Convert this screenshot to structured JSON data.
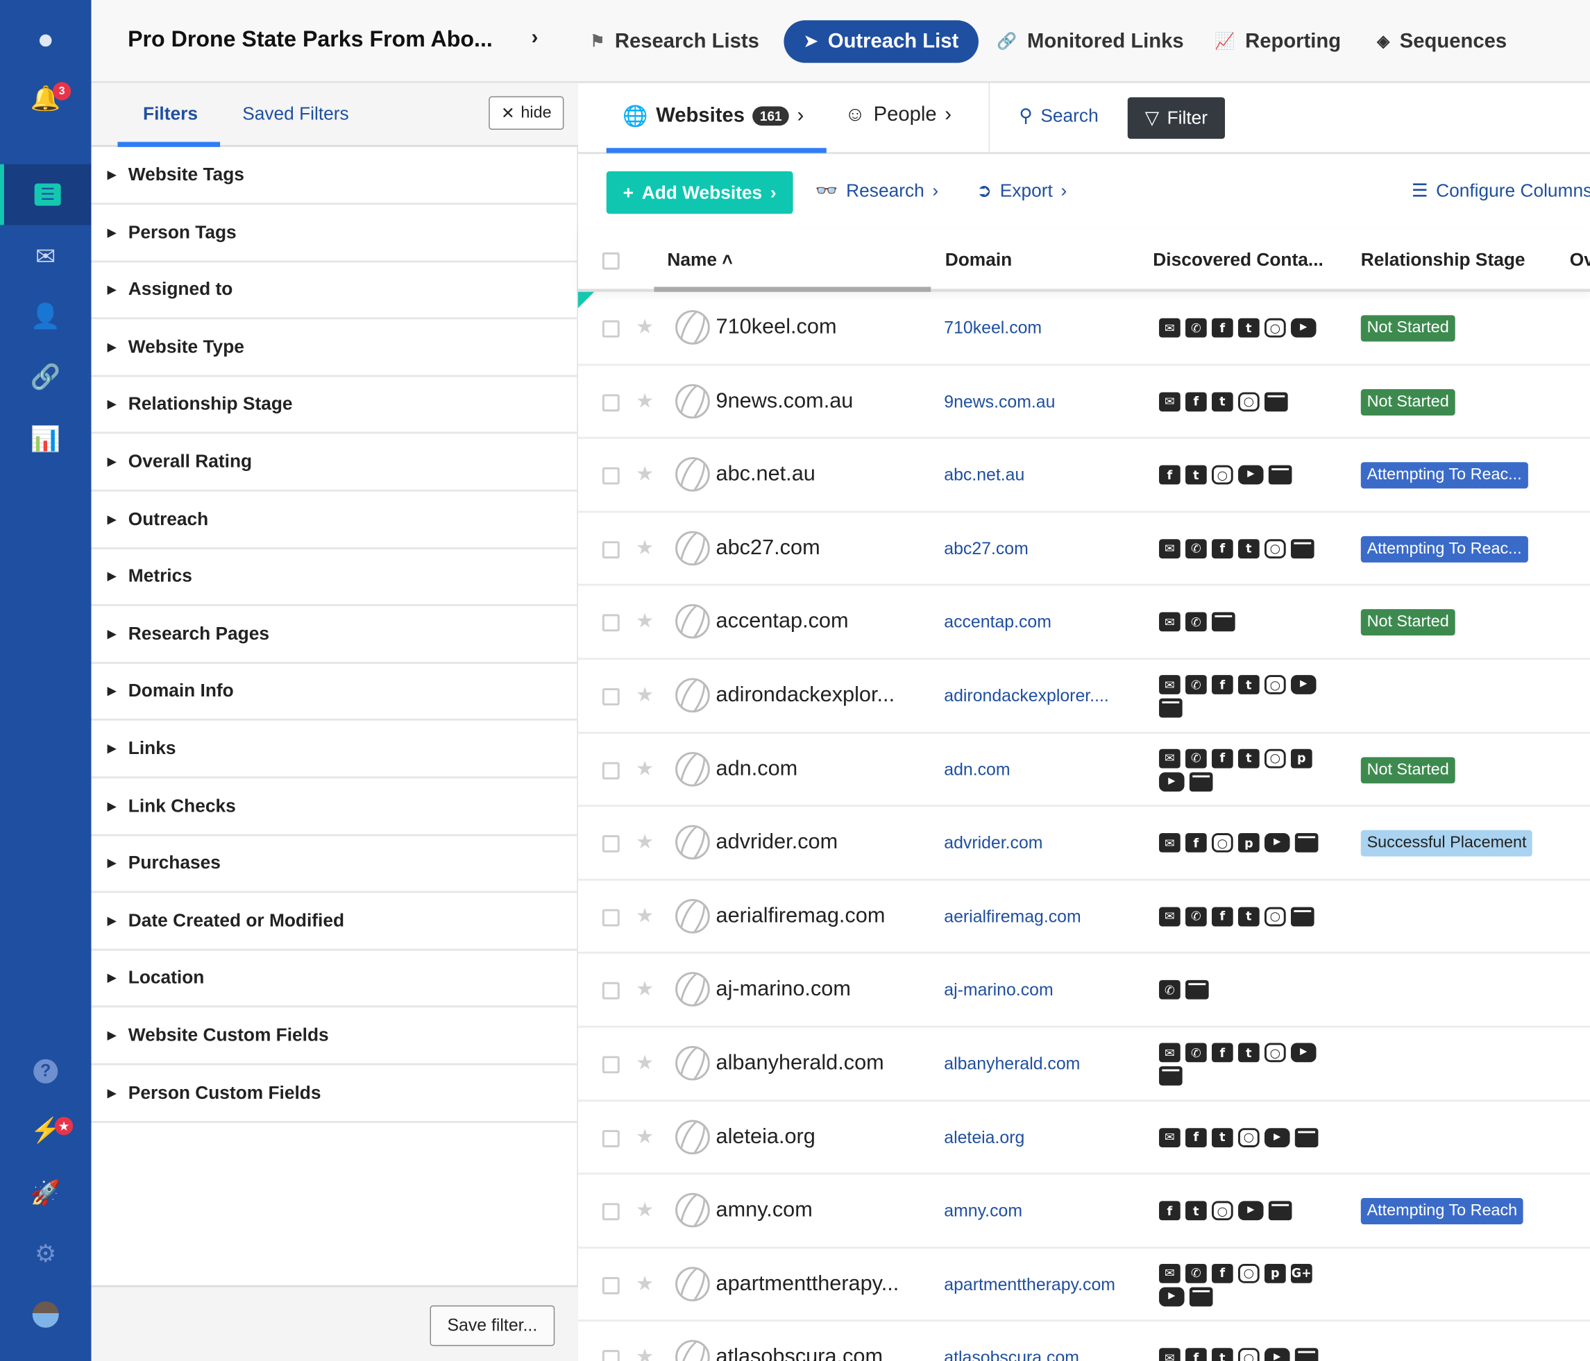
{
  "colors": {
    "nav_bg": "#1f4fa0",
    "accent_blue": "#2e7cf6",
    "teal": "#0fc7b1",
    "not_started": "#3d8a4f",
    "attempting": "#3a6bc9",
    "successful": "#a9d3f0"
  },
  "nav": {
    "icons": [
      "logo-icon",
      "bell-icon",
      "list-icon",
      "outreach-mail-icon",
      "contacts-book-icon",
      "link-icon",
      "reporting-chart-icon",
      "help-icon",
      "lightning-icon",
      "rocket-icon",
      "gear-icon",
      "avatar"
    ],
    "notification_count": "3"
  },
  "header": {
    "title": "Pro Drone State Parks From Abo...",
    "tabs": [
      {
        "label": "Research Lists",
        "icon": "flag-icon"
      },
      {
        "label": "Outreach List",
        "icon": "paper-plane-icon",
        "active": true
      },
      {
        "label": "Monitored Links",
        "icon": "link-icon"
      },
      {
        "label": "Reporting",
        "icon": "chart-icon"
      },
      {
        "label": "Sequences",
        "icon": "layers-icon"
      }
    ]
  },
  "filters": {
    "tab_filters": "Filters",
    "tab_saved": "Saved Filters",
    "hide_label": "hide",
    "items": [
      "Website Tags",
      "Person Tags",
      "Assigned to",
      "Website Type",
      "Relationship Stage",
      "Overall Rating",
      "Outreach",
      "Metrics",
      "Research Pages",
      "Domain Info",
      "Links",
      "Link Checks",
      "Purchases",
      "Date Created or Modified",
      "Location",
      "Website Custom Fields",
      "Person Custom Fields"
    ],
    "save_label": "Save filter..."
  },
  "main": {
    "websites_label": "Websites",
    "websites_count": "161",
    "people_label": "People",
    "search_label": "Search",
    "filter_label": "Filter",
    "add_websites": "Add Websites",
    "research": "Research",
    "export": "Export",
    "configure_columns": "Configure Columns",
    "columns": [
      "Name",
      "Domain",
      "Discovered Conta...",
      "Relationship Stage",
      "Ov"
    ],
    "rows": [
      {
        "name": "710keel.com",
        "domain": "710keel.com",
        "contacts": [
          "email",
          "phone",
          "facebook",
          "twitter",
          "instagram",
          "youtube"
        ],
        "stage": "Not Started",
        "stage_type": "not_started"
      },
      {
        "name": "9news.com.au",
        "domain": "9news.com.au",
        "contacts": [
          "email",
          "facebook",
          "twitter",
          "instagram",
          "web"
        ],
        "stage": "Not Started",
        "stage_type": "not_started"
      },
      {
        "name": "abc.net.au",
        "domain": "abc.net.au",
        "contacts": [
          "facebook",
          "twitter",
          "instagram",
          "youtube",
          "web"
        ],
        "stage": "Attempting To Reac...",
        "stage_type": "attempting"
      },
      {
        "name": "abc27.com",
        "domain": "abc27.com",
        "contacts": [
          "email",
          "phone",
          "facebook",
          "twitter",
          "instagram",
          "web"
        ],
        "stage": "Attempting To Reac...",
        "stage_type": "attempting"
      },
      {
        "name": "accentap.com",
        "domain": "accentap.com",
        "contacts": [
          "email",
          "phone",
          "web"
        ],
        "stage": "Not Started",
        "stage_type": "not_started"
      },
      {
        "name": "adirondackexplor...",
        "domain": "adirondackexplorer....",
        "contacts": [
          "email",
          "phone",
          "facebook",
          "twitter",
          "instagram",
          "youtube",
          "web"
        ],
        "stage": "",
        "stage_type": ""
      },
      {
        "name": "adn.com",
        "domain": "adn.com",
        "contacts": [
          "email",
          "phone",
          "facebook",
          "twitter",
          "instagram",
          "pinterest",
          "youtube",
          "web"
        ],
        "stage": "Not Started",
        "stage_type": "not_started"
      },
      {
        "name": "advrider.com",
        "domain": "advrider.com",
        "contacts": [
          "email",
          "facebook",
          "instagram",
          "pinterest",
          "youtube",
          "web"
        ],
        "stage": "Successful Placement",
        "stage_type": "successful"
      },
      {
        "name": "aerialfiremag.com",
        "domain": "aerialfiremag.com",
        "contacts": [
          "email",
          "phone",
          "facebook",
          "twitter",
          "instagram",
          "web"
        ],
        "stage": "",
        "stage_type": ""
      },
      {
        "name": "aj-marino.com",
        "domain": "aj-marino.com",
        "contacts": [
          "phone",
          "web"
        ],
        "stage": "",
        "stage_type": ""
      },
      {
        "name": "albanyherald.com",
        "domain": "albanyherald.com",
        "contacts": [
          "email",
          "phone",
          "facebook",
          "twitter",
          "instagram",
          "youtube",
          "web"
        ],
        "stage": "",
        "stage_type": ""
      },
      {
        "name": "aleteia.org",
        "domain": "aleteia.org",
        "contacts": [
          "email",
          "facebook",
          "twitter",
          "instagram",
          "youtube",
          "web"
        ],
        "stage": "",
        "stage_type": ""
      },
      {
        "name": "amny.com",
        "domain": "amny.com",
        "contacts": [
          "facebook",
          "twitter",
          "instagram",
          "youtube",
          "web"
        ],
        "stage": "Attempting To Reach",
        "stage_type": "attempting"
      },
      {
        "name": "apartmenttherapy...",
        "domain": "apartmenttherapy.com",
        "contacts": [
          "email",
          "phone",
          "facebook",
          "instagram",
          "pinterest",
          "google-plus",
          "youtube",
          "web"
        ],
        "stage": "",
        "stage_type": ""
      },
      {
        "name": "atlasobscura.com",
        "domain": "atlasobscura.com",
        "contacts": [
          "email",
          "facebook",
          "twitter",
          "instagram",
          "youtube",
          "web"
        ],
        "stage": "",
        "stage_type": ""
      }
    ]
  }
}
